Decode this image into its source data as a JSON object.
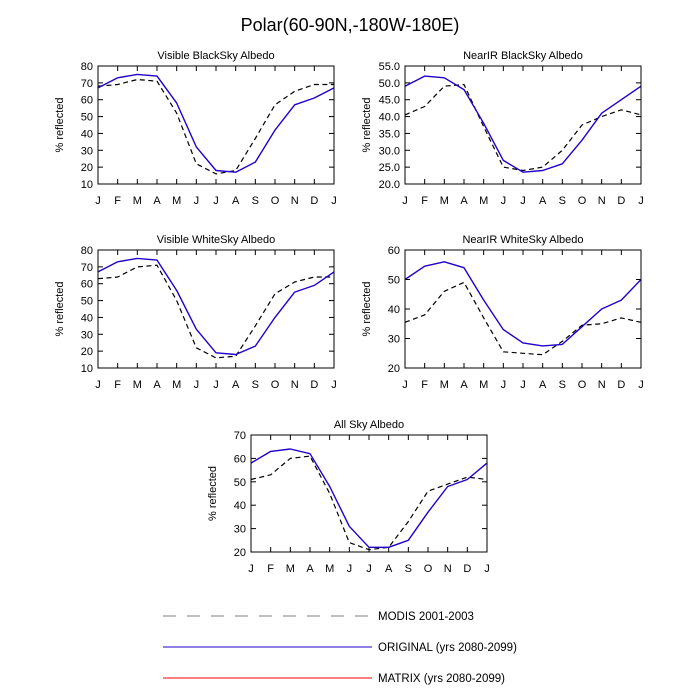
{
  "figure": {
    "title": "Polar(60-90N,-180W-180E)",
    "legend": [
      {
        "label": "MODIS 2001-2003",
        "color": "#000000",
        "style": "dashed"
      },
      {
        "label": "ORIGINAL (yrs 2080-2099)",
        "color": "#2200cc",
        "style": "solid"
      },
      {
        "label": "MATRIX (yrs 2080-2099)",
        "color": "#ff0000",
        "style": "solid"
      }
    ]
  },
  "chart_data": [
    {
      "type": "line",
      "title": "Visible BlackSky Albedo",
      "xlabel": "",
      "ylabel": "% reflected",
      "categories": [
        "J",
        "F",
        "M",
        "A",
        "M",
        "J",
        "J",
        "A",
        "S",
        "O",
        "N",
        "D",
        "J"
      ],
      "ylim": [
        10,
        80
      ],
      "yticks": [
        10,
        20,
        30,
        40,
        50,
        60,
        70,
        80
      ],
      "ytick_labels": [
        "10",
        "20",
        "30",
        "40",
        "50",
        "60",
        "70",
        "80"
      ],
      "series": [
        {
          "name": "MODIS 2001-2003",
          "values": [
            68,
            69,
            72,
            71,
            52,
            22,
            16,
            18,
            37,
            57,
            65,
            69,
            69
          ]
        },
        {
          "name": "ORIGINAL (yrs 2080-2099)",
          "values": [
            67,
            73,
            75,
            74,
            58,
            32,
            18,
            17,
            23,
            42,
            57,
            61,
            67
          ]
        }
      ]
    },
    {
      "type": "line",
      "title": "NearIR BlackSky Albedo",
      "xlabel": "",
      "ylabel": "% reflected",
      "categories": [
        "J",
        "F",
        "M",
        "A",
        "M",
        "J",
        "J",
        "A",
        "S",
        "O",
        "N",
        "D",
        "J"
      ],
      "ylim": [
        20,
        55
      ],
      "yticks": [
        20,
        25,
        30,
        35,
        40,
        45,
        50,
        55
      ],
      "ytick_labels": [
        "20.0",
        "25.0",
        "30.0",
        "35.0",
        "40.0",
        "45.0",
        "50.0",
        "55.0"
      ],
      "series": [
        {
          "name": "MODIS 2001-2003",
          "values": [
            40.5,
            43,
            49,
            49.5,
            37,
            25,
            24,
            25,
            30,
            37.5,
            40,
            42,
            40.5
          ]
        },
        {
          "name": "ORIGINAL (yrs 2080-2099)",
          "values": [
            49,
            52,
            51.5,
            48,
            38,
            27,
            23.5,
            24,
            26,
            33,
            41,
            45,
            49
          ]
        }
      ]
    },
    {
      "type": "line",
      "title": "Visible WhiteSky Albedo",
      "xlabel": "",
      "ylabel": "% reflected",
      "categories": [
        "J",
        "F",
        "M",
        "A",
        "M",
        "J",
        "J",
        "A",
        "S",
        "O",
        "N",
        "D",
        "J"
      ],
      "ylim": [
        10,
        80
      ],
      "yticks": [
        10,
        20,
        30,
        40,
        50,
        60,
        70,
        80
      ],
      "ytick_labels": [
        "10",
        "20",
        "30",
        "40",
        "50",
        "60",
        "70",
        "80"
      ],
      "series": [
        {
          "name": "MODIS 2001-2003",
          "values": [
            63,
            64,
            70,
            71,
            50,
            22,
            16,
            17,
            35,
            54,
            61,
            64,
            64
          ]
        },
        {
          "name": "ORIGINAL (yrs 2080-2099)",
          "values": [
            67,
            73,
            75,
            74,
            56,
            33,
            19,
            18,
            23,
            40,
            55,
            59,
            67
          ]
        }
      ]
    },
    {
      "type": "line",
      "title": "NearIR WhiteSky Albedo",
      "xlabel": "",
      "ylabel": "% reflected",
      "categories": [
        "J",
        "F",
        "M",
        "A",
        "M",
        "J",
        "J",
        "A",
        "S",
        "O",
        "N",
        "D",
        "J"
      ],
      "ylim": [
        20,
        60
      ],
      "yticks": [
        20,
        30,
        40,
        50,
        60
      ],
      "ytick_labels": [
        "20",
        "30",
        "40",
        "50",
        "60"
      ],
      "series": [
        {
          "name": "MODIS 2001-2003",
          "values": [
            35.5,
            38,
            46,
            49,
            37,
            25.5,
            25,
            24.5,
            29,
            34.5,
            35,
            37,
            35.5
          ]
        },
        {
          "name": "ORIGINAL (yrs 2080-2099)",
          "values": [
            50,
            54.5,
            56,
            54,
            43,
            33,
            28.5,
            27.5,
            28,
            34,
            40,
            43,
            50
          ]
        }
      ]
    },
    {
      "type": "line",
      "title": "All Sky Albedo",
      "xlabel": "",
      "ylabel": "% reflected",
      "categories": [
        "J",
        "F",
        "M",
        "A",
        "M",
        "J",
        "J",
        "A",
        "S",
        "O",
        "N",
        "D",
        "J"
      ],
      "ylim": [
        20,
        70
      ],
      "yticks": [
        20,
        30,
        40,
        50,
        60,
        70
      ],
      "ytick_labels": [
        "20",
        "30",
        "40",
        "50",
        "60",
        "70"
      ],
      "series": [
        {
          "name": "MODIS 2001-2003",
          "values": [
            51,
            53,
            60,
            61,
            45,
            24,
            21,
            22,
            33,
            46,
            49,
            52,
            51
          ]
        },
        {
          "name": "ORIGINAL (yrs 2080-2099)",
          "values": [
            58,
            63,
            64,
            62,
            48,
            31,
            22,
            22,
            25,
            37,
            48,
            51,
            58
          ]
        }
      ]
    }
  ]
}
